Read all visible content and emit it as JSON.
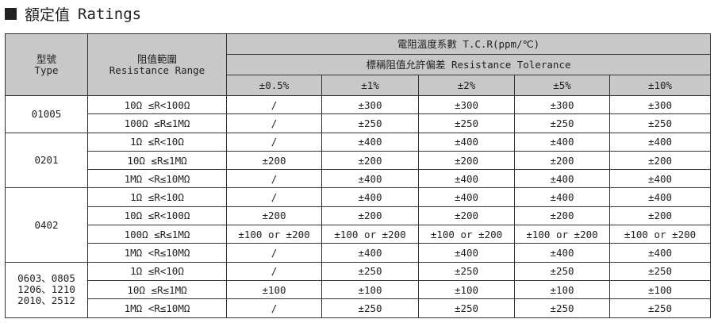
{
  "title": {
    "zh": "額定值",
    "en": "Ratings"
  },
  "header": {
    "type_zh": "型號",
    "type_en": "Type",
    "range_zh": "阻值範圍",
    "range_en": "Resistance Range",
    "tcr": "電阻溫度系數  T.C.R(ppm/℃)",
    "tolerance": "標稱阻值允許偏差  Resistance Tolerance",
    "tolerances": [
      "±0.5%",
      "±1%",
      "±2%",
      "±5%",
      "±10%"
    ]
  },
  "groups": [
    {
      "type": "01005",
      "rows": [
        {
          "range": "10Ω ≤R<100Ω",
          "values": [
            "/",
            "±300",
            "±300",
            "±300",
            "±300"
          ]
        },
        {
          "range": "100Ω ≤R≤1MΩ",
          "values": [
            "/",
            "±250",
            "±250",
            "±250",
            "±250"
          ]
        }
      ]
    },
    {
      "type": "0201",
      "rows": [
        {
          "range": "1Ω ≤R<10Ω",
          "values": [
            "/",
            "±400",
            "±400",
            "±400",
            "±400"
          ]
        },
        {
          "range": "10Ω ≤R≤1MΩ",
          "values": [
            "±200",
            "±200",
            "±200",
            "±200",
            "±200"
          ]
        },
        {
          "range": "1MΩ <R≤10MΩ",
          "values": [
            "/",
            "±400",
            "±400",
            "±400",
            "±400"
          ]
        }
      ]
    },
    {
      "type": "0402",
      "rows": [
        {
          "range": "1Ω ≤R<10Ω",
          "values": [
            "/",
            "±400",
            "±400",
            "±400",
            "±400"
          ]
        },
        {
          "range": "10Ω ≤R<100Ω",
          "values": [
            "±200",
            "±200",
            "±200",
            "±200",
            "±200"
          ]
        },
        {
          "range": "100Ω ≤R≤1MΩ",
          "values": [
            "±100 or ±200",
            "±100 or ±200",
            "±100 or ±200",
            "±100 or ±200",
            "±100 or ±200"
          ]
        },
        {
          "range": "1MΩ <R≤10MΩ",
          "values": [
            "/",
            "±400",
            "±400",
            "±400",
            "±400"
          ]
        }
      ]
    },
    {
      "type": "0603、0805\n1206、1210\n2010、2512",
      "rows": [
        {
          "range": "1Ω ≤R<10Ω",
          "values": [
            "/",
            "±250",
            "±250",
            "±250",
            "±250"
          ]
        },
        {
          "range": "10Ω ≤R≤1MΩ",
          "values": [
            "±100",
            "±100",
            "±100",
            "±100",
            "±100"
          ]
        },
        {
          "range": "1MΩ <R≤10MΩ",
          "values": [
            "/",
            "±250",
            "±250",
            "±250",
            "±250"
          ]
        }
      ]
    }
  ]
}
